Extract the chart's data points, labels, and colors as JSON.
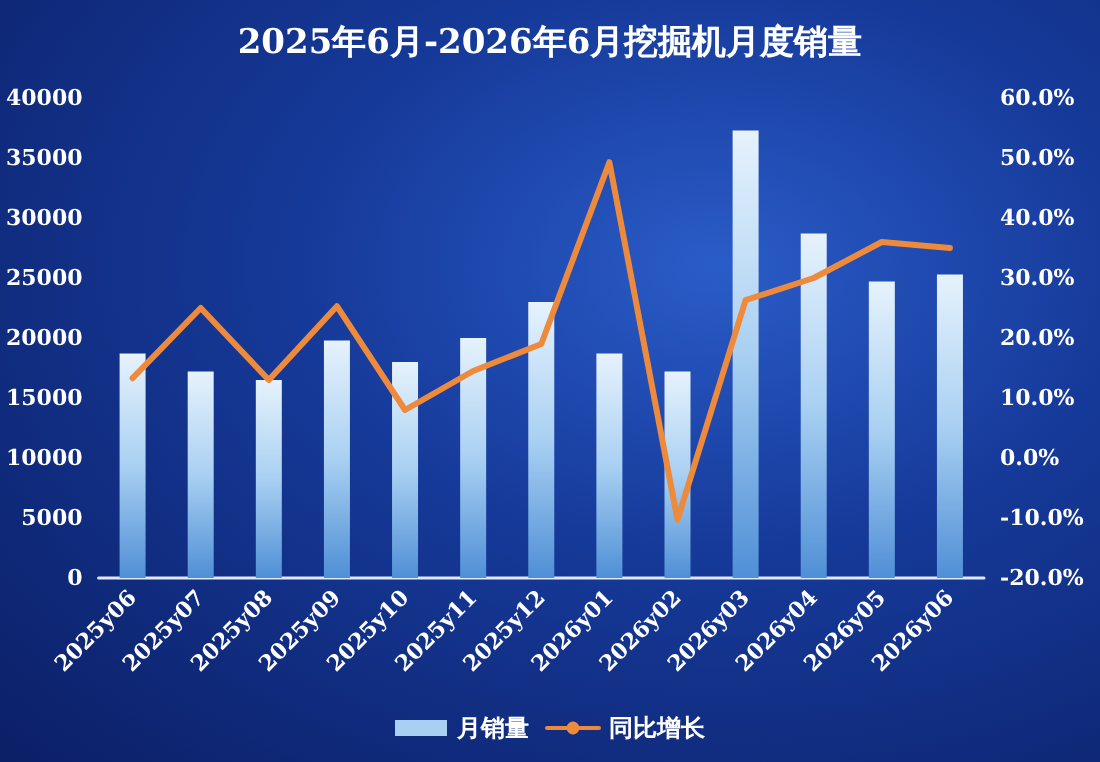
{
  "chart_data": {
    "type": "bar",
    "title": "2025年6月-2026年6月挖掘机月度销量",
    "categories": [
      "2025y06",
      "2025y07",
      "2025y08",
      "2025y09",
      "2025y10",
      "2025y11",
      "2025y12",
      "2026y01",
      "2026y02",
      "2026y03",
      "2026y04",
      "2026y05",
      "2026y06"
    ],
    "series": [
      {
        "name": "月销量",
        "color": "#a9d0f2",
        "values": [
          18700,
          17200,
          16500,
          19800,
          18000,
          20000,
          23000,
          18700,
          17200,
          37300,
          28700,
          24700,
          25300
        ]
      },
      {
        "name": "同比增长",
        "type": "line",
        "axis": "y2",
        "color": "#ee8a3c",
        "values": [
          13.3,
          25,
          13,
          25.3,
          8,
          14.5,
          19,
          49.3,
          -10.3,
          26.3,
          30,
          36,
          35
        ]
      }
    ],
    "ylim": [
      0,
      40000
    ],
    "yticks": [
      0,
      5000,
      10000,
      15000,
      20000,
      25000,
      30000,
      35000,
      40000
    ],
    "y2lim": [
      -20,
      60
    ],
    "y2ticks": [
      {
        "value": -20,
        "label": "-20.0%"
      },
      {
        "value": -10,
        "label": "-10.0%"
      },
      {
        "value": 0,
        "label": "0.0%"
      },
      {
        "value": 10,
        "label": "10.0%"
      },
      {
        "value": 20,
        "label": "20.0%"
      },
      {
        "value": 30,
        "label": "30.0%"
      },
      {
        "value": 40,
        "label": "40.0%"
      },
      {
        "value": 50,
        "label": "50.0%"
      },
      {
        "value": 60,
        "label": "60.0%"
      }
    ],
    "grid": false,
    "legend": "bottom",
    "marker": "none",
    "line_style": "solid"
  }
}
